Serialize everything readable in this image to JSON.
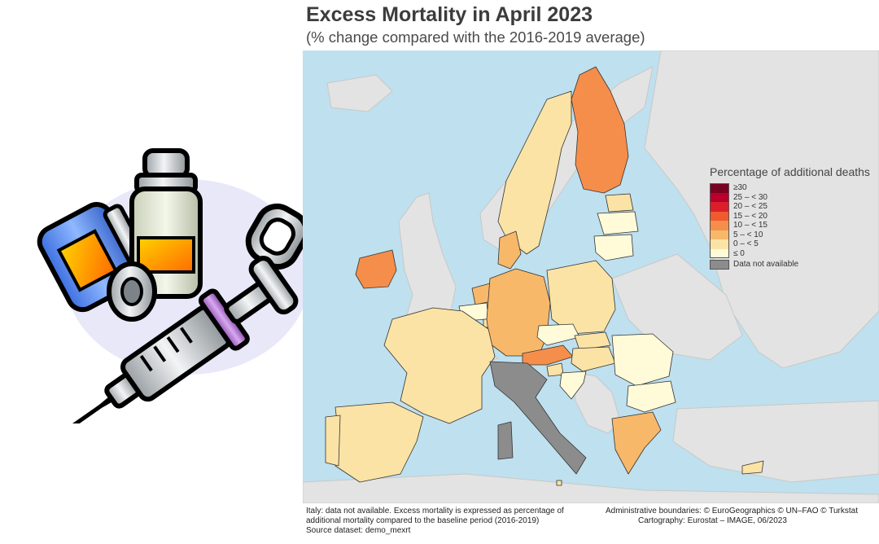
{
  "title": "Excess Mortality in April 2023",
  "subtitle": "(% change compared with the 2016-2019 average)",
  "legend": {
    "title": "Percentage of additional deaths",
    "classes": [
      {
        "label": "≥30",
        "color": "#7a0021"
      },
      {
        "label": "25 – < 30",
        "color": "#b8002a"
      },
      {
        "label": "20 – < 25",
        "color": "#dc1e2a"
      },
      {
        "label": "15 – < 20",
        "color": "#ef5a2e"
      },
      {
        "label": "10 – < 15",
        "color": "#f58e4a"
      },
      {
        "label": "5 – < 10",
        "color": "#f8b86a"
      },
      {
        "label": "0 – < 5",
        "color": "#fbe3a6"
      },
      {
        "label": "≤ 0",
        "color": "#fffbd9"
      }
    ],
    "na": {
      "label": "Data not available",
      "color": "#8c8c8c"
    }
  },
  "colors": {
    "sea": "#bfe0ee",
    "non_eu_land": "#e3e3e3",
    "borders": "#333333"
  },
  "footer": {
    "left_lines": [
      "Italy: data not available. Excess mortality is expressed as percentage of",
      "additional mortality compared to the baseline period (2016-2019)",
      "Source dataset: demo_mexrt"
    ],
    "right_lines": [
      "Administrative boundaries: © EuroGeographics © UN–FAO © Turkstat",
      "Cartography: Eurostat – IMAGE, 06/2023"
    ]
  },
  "clipart": {
    "icon": "vaccine-vial-syringe-icon"
  }
}
